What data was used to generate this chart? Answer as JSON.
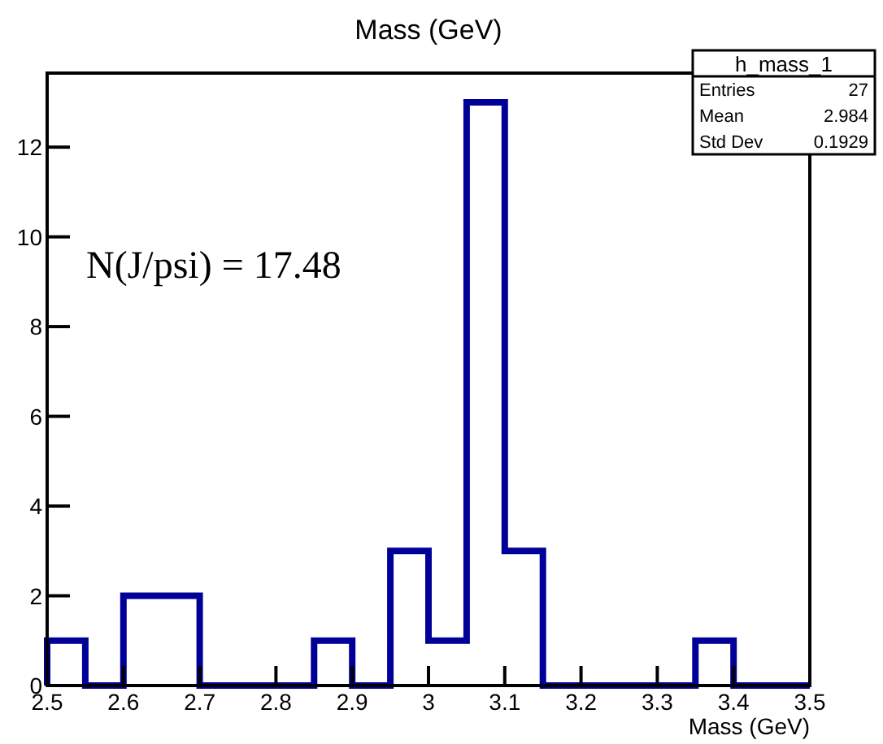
{
  "chart_data": {
    "type": "histogram",
    "title": "Mass (GeV)",
    "xlabel": "Mass (GeV)",
    "bins": [
      2.5,
      2.55,
      2.6,
      2.65,
      2.7,
      2.75,
      2.8,
      2.85,
      2.9,
      2.95,
      3.0,
      3.05,
      3.1,
      3.15,
      3.2,
      3.25,
      3.3,
      3.35,
      3.4,
      3.45,
      3.5
    ],
    "values": [
      1,
      0,
      2,
      2,
      0,
      0,
      0,
      1,
      0,
      3,
      1,
      13,
      3,
      0,
      0,
      0,
      0,
      1,
      0,
      0
    ],
    "color": "#000099",
    "xlim": [
      2.5,
      3.5
    ],
    "xticks": [
      2.5,
      2.6,
      2.7,
      2.8,
      2.9,
      3,
      3.1,
      3.2,
      3.3,
      3.4,
      3.5
    ],
    "ylim": [
      0,
      13.65
    ],
    "yticks": [
      0,
      2,
      4,
      6,
      8,
      10,
      12
    ],
    "grid": false,
    "annotations": [
      "N(J/psi) = 17.48",
      "h_mass_1",
      "Entries",
      "27",
      "Mean",
      "2.984",
      "Std Dev",
      "0.1929"
    ]
  }
}
